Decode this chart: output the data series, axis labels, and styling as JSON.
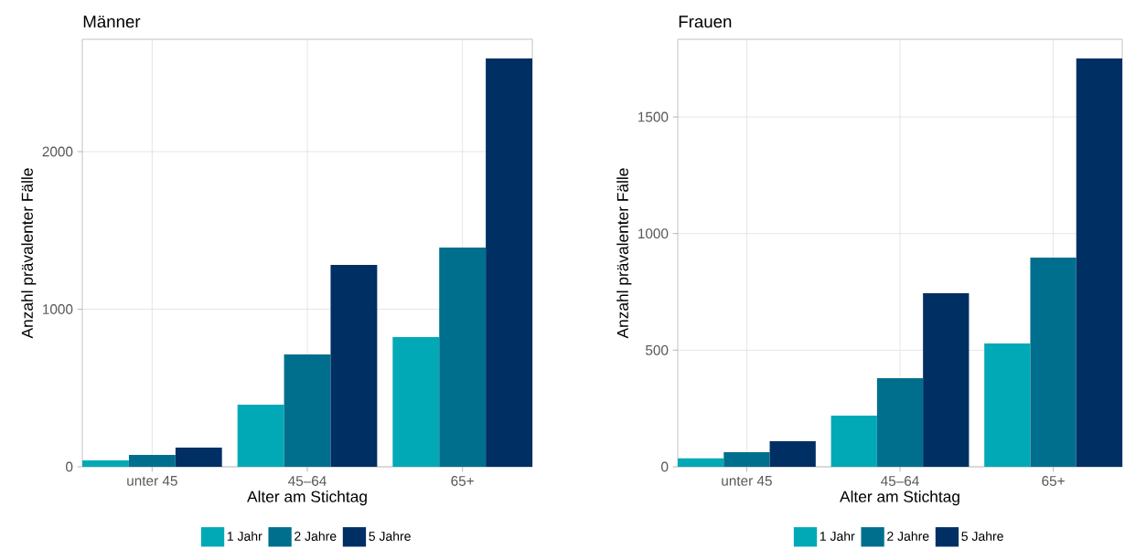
{
  "chart_data": [
    {
      "type": "bar",
      "title": "Männer",
      "xlabel": "Alter am Stichtag",
      "ylabel": "Anzahl prävalenter Fälle",
      "categories": [
        "unter 45",
        "45–64",
        "65+"
      ],
      "series": [
        {
          "name": "1 Jahr",
          "color": "#00a9b5",
          "values": [
            41,
            394,
            823
          ]
        },
        {
          "name": "2 Jahre",
          "color": "#006f8e",
          "values": [
            75,
            713,
            1391
          ]
        },
        {
          "name": "5 Jahre",
          "color": "#002f63",
          "values": [
            122,
            1281,
            2591
          ]
        }
      ],
      "ylim": [
        0,
        2713
      ],
      "yticks": [
        0,
        1000,
        2000
      ],
      "grid": true,
      "legend": "bottom"
    },
    {
      "type": "bar",
      "title": "Frauen",
      "xlabel": "Alter am Stichtag",
      "ylabel": "Anzahl prävalenter Fälle",
      "categories": [
        "unter 45",
        "45–64",
        "65+"
      ],
      "series": [
        {
          "name": "1 Jahr",
          "color": "#00a9b5",
          "values": [
            36,
            219,
            529
          ]
        },
        {
          "name": "2 Jahre",
          "color": "#006f8e",
          "values": [
            63,
            380,
            897
          ]
        },
        {
          "name": "5 Jahre",
          "color": "#002f63",
          "values": [
            110,
            744,
            1751
          ]
        }
      ],
      "ylim": [
        0,
        1833
      ],
      "yticks": [
        0,
        500,
        1000,
        1500
      ],
      "grid": true,
      "legend": "bottom"
    }
  ]
}
